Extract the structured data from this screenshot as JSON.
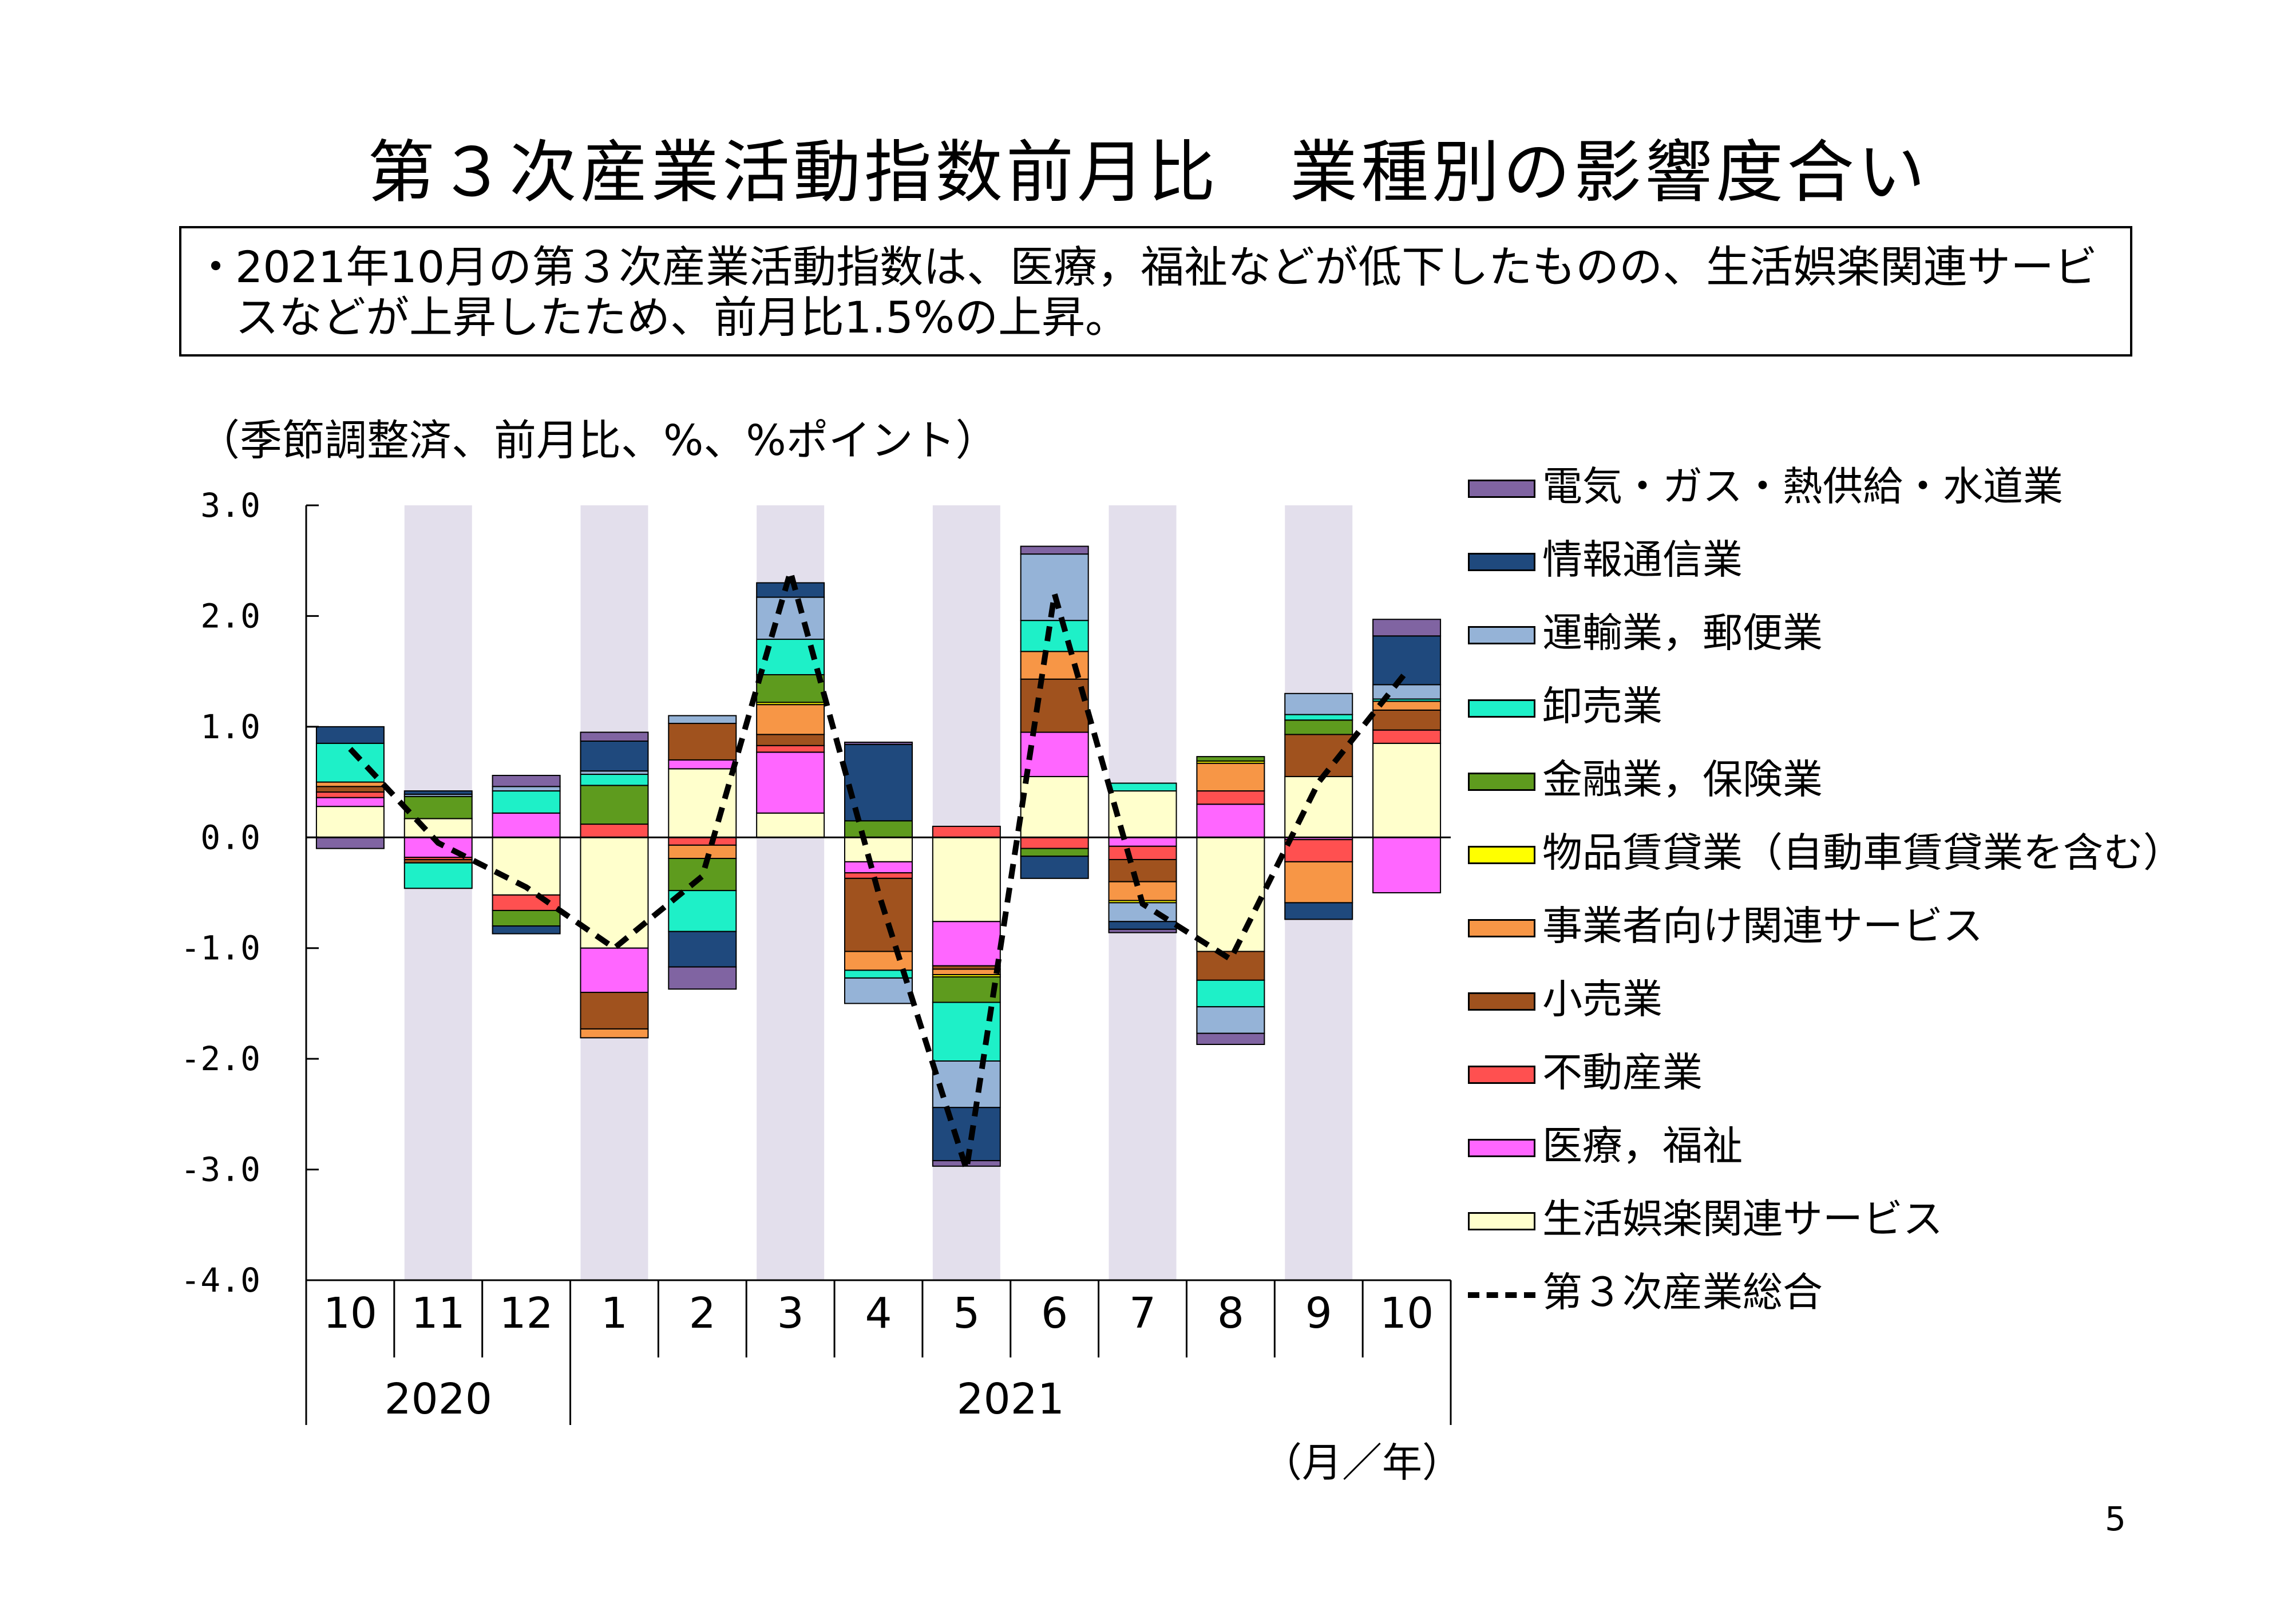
{
  "title": "第３次産業活動指数前月比　業種別の影響度合い",
  "summary": {
    "bullet": "・",
    "text": "2021年10月の第３次産業活動指数は、医療，福祉などが低下したものの、生活娯楽関連サービスなどが上昇したため、前月比1.5%の上昇。"
  },
  "unit_note": "（季節調整済、前月比、%、%ポイント）",
  "month_year_unit": "（月／年）",
  "page_number": "5",
  "chart_data": {
    "type": "bar",
    "stacked": true,
    "categories": [
      "10",
      "11",
      "12",
      "1",
      "2",
      "3",
      "4",
      "5",
      "6",
      "7",
      "8",
      "9",
      "10"
    ],
    "year_groups": [
      {
        "label": "2020",
        "months": 3
      },
      {
        "label": "2021",
        "months": 10
      }
    ],
    "ylim": [
      -4.0,
      3.0
    ],
    "yticks": [
      "3.0",
      "2.0",
      "1.0",
      "0.0",
      "-1.0",
      "-2.0",
      "-3.0",
      "-4.0"
    ],
    "shaded_categories": [
      1,
      3,
      5,
      7,
      9,
      11
    ],
    "shade_color": "#e3dfec",
    "series": [
      {
        "name": "生活娯楽関連サービス",
        "color": "#ffffcc",
        "values": [
          0.28,
          0.17,
          -0.52,
          -1.0,
          0.62,
          0.22,
          -0.22,
          -0.76,
          0.55,
          0.42,
          -1.03,
          0.55,
          0.85
        ]
      },
      {
        "name": "医療，福祉",
        "color": "#ff66ff",
        "values": [
          0.08,
          -0.18,
          0.22,
          -0.4,
          0.08,
          0.55,
          -0.1,
          -0.4,
          0.4,
          -0.08,
          0.3,
          -0.02,
          -0.5
        ]
      },
      {
        "name": "不動産業",
        "color": "#ff5050",
        "values": [
          0.05,
          -0.02,
          -0.14,
          0.12,
          -0.07,
          0.06,
          -0.05,
          0.1,
          -0.1,
          -0.12,
          0.12,
          -0.2,
          0.12
        ]
      },
      {
        "name": "小売業",
        "color": "#a0521e",
        "values": [
          0.05,
          -0.03,
          0.0,
          -0.33,
          0.33,
          0.1,
          -0.66,
          -0.03,
          0.48,
          -0.2,
          -0.26,
          0.38,
          0.18
        ]
      },
      {
        "name": "事業者向け関連サービス",
        "color": "#f79646",
        "values": [
          0.04,
          0.0,
          0.0,
          -0.08,
          -0.12,
          0.27,
          -0.17,
          -0.05,
          0.25,
          -0.17,
          0.25,
          -0.37,
          0.08
        ]
      },
      {
        "name": "物品賃貸業（自動車賃貸業を含む）",
        "color": "#ffff00",
        "values": [
          0.0,
          0.0,
          0.0,
          0.0,
          0.0,
          0.02,
          0.0,
          -0.02,
          0.0,
          -0.02,
          0.02,
          0.0,
          0.0
        ]
      },
      {
        "name": "金融業，保険業",
        "color": "#5e9b1e",
        "values": [
          0.0,
          0.2,
          -0.14,
          0.35,
          -0.29,
          0.25,
          0.15,
          -0.23,
          -0.07,
          0.0,
          0.04,
          0.13,
          0.0
        ]
      },
      {
        "name": "卸売業",
        "color": "#1ef0c8",
        "values": [
          0.35,
          -0.23,
          0.2,
          0.1,
          -0.37,
          0.32,
          -0.07,
          -0.53,
          0.28,
          0.07,
          -0.24,
          0.05,
          0.02
        ]
      },
      {
        "name": "運輸業，郵便業",
        "color": "#95b3d7",
        "values": [
          0.0,
          0.02,
          0.04,
          0.03,
          0.07,
          0.38,
          -0.23,
          -0.42,
          0.6,
          -0.17,
          -0.24,
          0.19,
          0.13
        ]
      },
      {
        "name": "情報通信業",
        "color": "#1f497d",
        "values": [
          0.15,
          0.03,
          -0.07,
          0.27,
          -0.32,
          0.13,
          0.69,
          -0.48,
          -0.2,
          -0.07,
          0.0,
          -0.15,
          0.44
        ]
      },
      {
        "name": "電気・ガス・熱供給・水道業",
        "color": "#8064a2",
        "values": [
          -0.1,
          0.0,
          0.1,
          0.08,
          -0.2,
          0.0,
          0.02,
          -0.05,
          0.07,
          -0.03,
          -0.1,
          0.0,
          0.15
        ]
      }
    ],
    "total_line": {
      "name": "第３次産業総合",
      "values": [
        0.8,
        -0.05,
        -0.45,
        -1.0,
        -0.35,
        2.4,
        -0.5,
        -3.0,
        2.2,
        -0.6,
        -1.1,
        0.5,
        1.5
      ]
    },
    "legend": [
      {
        "label": "電気・ガス・熱供給・水道業",
        "color": "#8064a2"
      },
      {
        "label": "情報通信業",
        "color": "#1f497d"
      },
      {
        "label": "運輸業，郵便業",
        "color": "#95b3d7"
      },
      {
        "label": "卸売業",
        "color": "#1ef0c8"
      },
      {
        "label": "金融業，保険業",
        "color": "#5e9b1e"
      },
      {
        "label": "物品賃貸業（自動車賃貸業を含む）",
        "color": "#ffff00"
      },
      {
        "label": "事業者向け関連サービス",
        "color": "#f79646"
      },
      {
        "label": "小売業",
        "color": "#a0521e"
      },
      {
        "label": "不動産業",
        "color": "#ff5050"
      },
      {
        "label": "医療，福祉",
        "color": "#ff66ff"
      },
      {
        "label": "生活娯楽関連サービス",
        "color": "#ffffcc"
      },
      {
        "label": "第３次産業総合",
        "line": "dashed"
      }
    ]
  }
}
